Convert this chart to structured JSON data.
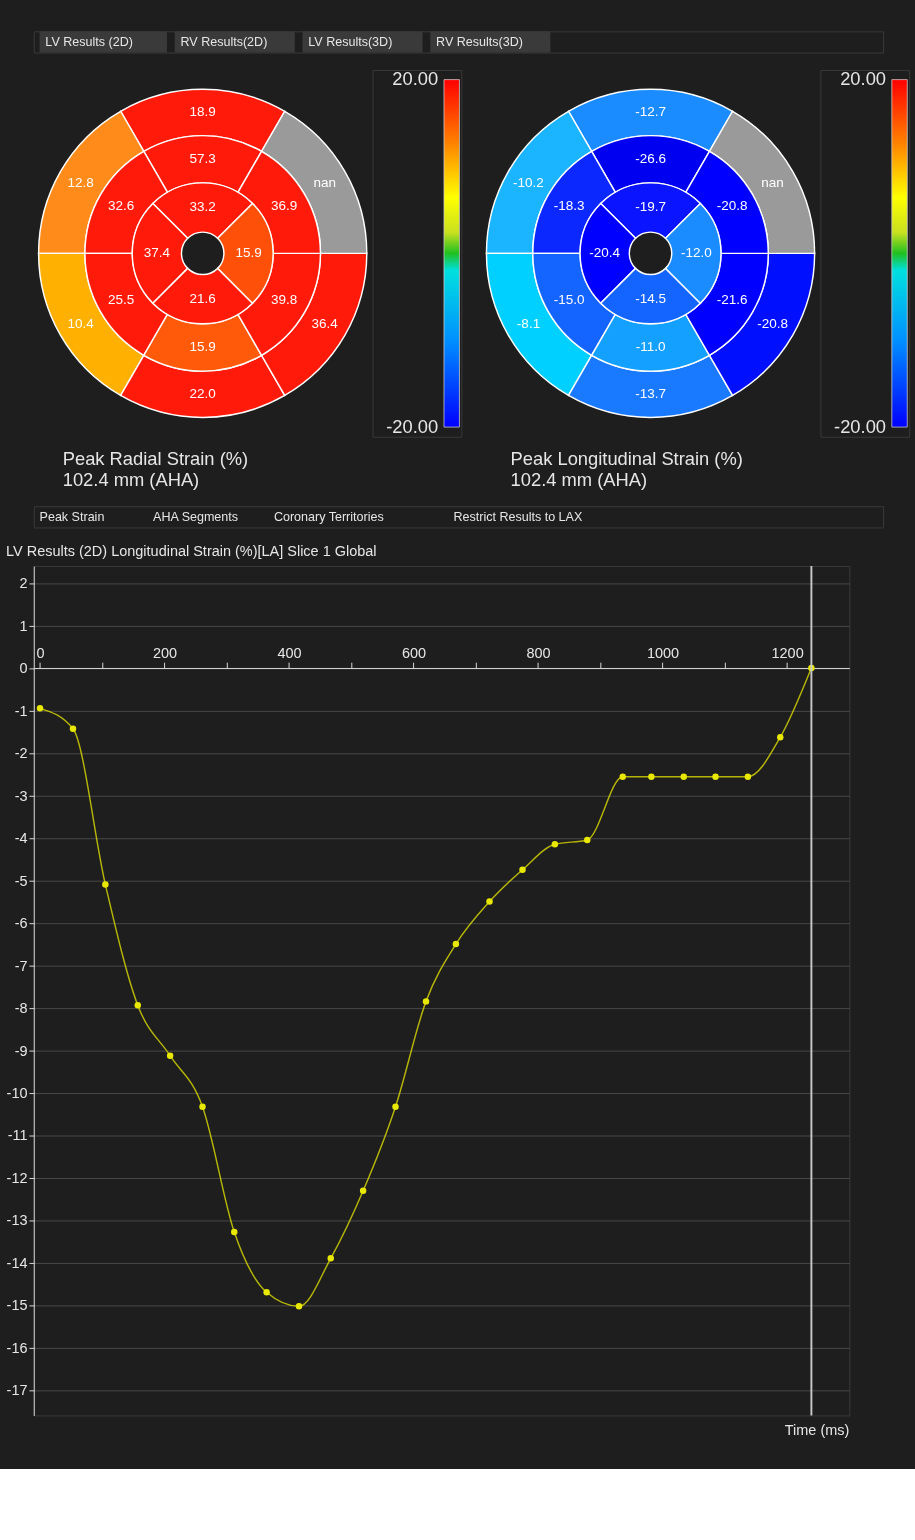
{
  "chart_data": [
    {
      "type": "other",
      "annotations": [
        "LV Results (2D)",
        "RV Results(2D)",
        "LV Results(3D)",
        "RV Results(3D)"
      ]
    },
    {
      "type": "other",
      "title": "Peak Radial Strain (%)",
      "subtitle": "102.4 mm (AHA)",
      "annotations": [
        "18.9",
        "12.8",
        "10.4",
        "22.0",
        "36.4",
        "nan",
        "57.3",
        "32.6",
        "25.5",
        "15.9",
        "39.8",
        "36.9",
        "33.2",
        "37.4",
        "21.6",
        "15.9",
        "20.00",
        "-20.00"
      ],
      "colors": [
        "#ff1a0a",
        "#ff8c1a",
        "#ffb000",
        "#ff1a0a",
        "#ff1a0a",
        "#9a9a9a",
        "#ff1a0a",
        "#ff1a0a",
        "#ff1a0a",
        "#ff5a0a",
        "#ff1a0a",
        "#ff1a0a",
        "#ff1a0a",
        "#ff1a0a",
        "#ff1a0a",
        "#ff500a"
      ]
    },
    {
      "type": "other",
      "title": "Peak Longitudinal Strain (%)",
      "subtitle": "102.4 mm (AHA)",
      "annotations": [
        "-12.7",
        "-10.2",
        "-8.1",
        "-13.7",
        "-20.8",
        "nan",
        "-26.6",
        "-18.3",
        "-15.0",
        "-11.0",
        "-21.6",
        "-20.8",
        "-19.7",
        "-20.4",
        "-14.5",
        "-12.0",
        "20.00",
        "-20.00"
      ],
      "colors": [
        "#1a8cff",
        "#1ab4ff",
        "#00d0ff",
        "#1a7aff",
        "#0010ff",
        "#9a9a9a",
        "#0000f0",
        "#0a28ff",
        "#1464ff",
        "#14a0ff",
        "#0000ff",
        "#0000ff",
        "#0a14ff",
        "#0000ff",
        "#1464ff",
        "#1a8cff"
      ]
    },
    {
      "type": "other",
      "annotations": [
        "Peak Strain",
        "AHA Segments",
        "Coronary Territories",
        "Restrict Results to LAX"
      ]
    },
    {
      "type": "line",
      "title": "LV Results (2D) Longitudinal Strain (%)[LA] Slice 1 Global",
      "xlabel": "Time (ms)",
      "series": [
        {
          "color": "#e8e800",
          "x": [
            0,
            53,
            105,
            157,
            209,
            261,
            312,
            364,
            416,
            467,
            519,
            571,
            620,
            668,
            722,
            775,
            827,
            879,
            936,
            982,
            1034,
            1085,
            1137,
            1189,
            1239
          ],
          "values": [
            -0.95,
            -1.43,
            -5.1,
            -7.94,
            -9.13,
            -10.33,
            -13.28,
            -14.7,
            -15.03,
            -13.9,
            -12.31,
            -10.33,
            -7.85,
            -6.5,
            -5.5,
            -4.75,
            -4.15,
            -4.05,
            -2.56,
            -2.56,
            -2.56,
            -2.56,
            -2.56,
            -1.63,
            0
          ]
        }
      ],
      "marker": "circle",
      "line_style": "solid",
      "grid": "y",
      "xlim": [
        -10,
        1300
      ],
      "ylim": [
        -17.6,
        2.4
      ],
      "xticks": [
        0,
        {
          "value": 100,
          "label": null
        },
        200,
        {
          "value": 300,
          "label": null
        },
        400,
        {
          "value": 500,
          "label": null
        },
        600,
        {
          "value": 700,
          "label": null
        },
        800,
        {
          "value": 900,
          "label": null
        },
        1000,
        {
          "value": 1100,
          "label": null
        },
        1200
      ],
      "yticks": [
        -17,
        -16,
        -15,
        -14,
        -13,
        -12,
        -11,
        -10,
        -9,
        -8,
        -7,
        -6,
        -5,
        -4,
        -3,
        -2,
        -1,
        0,
        1,
        2
      ],
      "ref_lines": [
        {
          "axis": "x",
          "value": 1239,
          "label": null,
          "color": "#c8c8c8"
        }
      ]
    }
  ]
}
